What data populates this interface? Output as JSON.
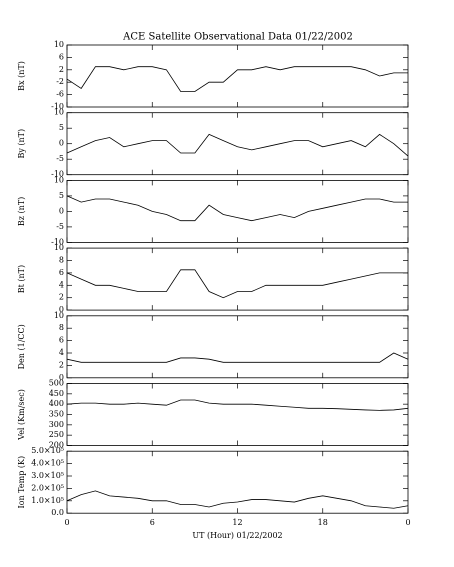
{
  "chart_data": [
    {
      "type": "line",
      "title": "ACE Satellite Observational Data   01/22/2002",
      "ylabel": "Bx (nT)",
      "color": "#000000",
      "x": [
        0,
        1,
        2,
        3,
        4,
        5,
        6,
        7,
        8,
        9,
        10,
        11,
        12,
        13,
        14,
        15,
        16,
        17,
        18,
        19,
        20,
        21,
        22,
        23,
        24
      ],
      "values": [
        -1,
        -4,
        3,
        3,
        2,
        3,
        3,
        2,
        -5,
        -5,
        -2,
        -2,
        2,
        2,
        3,
        2,
        3,
        3,
        3,
        3,
        3,
        2,
        0,
        1,
        1
      ],
      "xlim": [
        0,
        24
      ],
      "ylim": [
        -10,
        10
      ],
      "yticks": [
        -10,
        -6,
        -2,
        2,
        6,
        10
      ]
    },
    {
      "type": "line",
      "ylabel": "By (nT)",
      "color": "#000000",
      "x": [
        0,
        1,
        2,
        3,
        4,
        5,
        6,
        7,
        8,
        9,
        10,
        11,
        12,
        13,
        14,
        15,
        16,
        17,
        18,
        19,
        20,
        21,
        22,
        23,
        24
      ],
      "values": [
        -3,
        -1,
        1,
        2,
        -1,
        0,
        1,
        1,
        -3,
        -3,
        3,
        1,
        -1,
        -2,
        -1,
        0,
        1,
        1,
        -1,
        0,
        1,
        -1,
        3,
        0,
        -4
      ],
      "xlim": [
        0,
        24
      ],
      "ylim": [
        -10,
        10
      ],
      "yticks": [
        -10,
        -5,
        0,
        5,
        10
      ]
    },
    {
      "type": "line",
      "ylabel": "Bz (nT)",
      "color": "#000000",
      "x": [
        0,
        1,
        2,
        3,
        4,
        5,
        6,
        7,
        8,
        9,
        10,
        11,
        12,
        13,
        14,
        15,
        16,
        17,
        18,
        19,
        20,
        21,
        22,
        23,
        24
      ],
      "values": [
        5,
        3,
        4,
        4,
        3,
        2,
        0,
        -1,
        -3,
        -3,
        2,
        -1,
        -2,
        -3,
        -2,
        -1,
        -2,
        0,
        1,
        2,
        3,
        4,
        4,
        3,
        3
      ],
      "xlim": [
        0,
        24
      ],
      "ylim": [
        -10,
        10
      ],
      "yticks": [
        -10,
        -5,
        0,
        5,
        10
      ]
    },
    {
      "type": "line",
      "ylabel": "Bt (nT)",
      "color": "#000000",
      "x": [
        0,
        1,
        2,
        3,
        4,
        5,
        6,
        7,
        8,
        9,
        10,
        11,
        12,
        13,
        14,
        15,
        16,
        17,
        18,
        19,
        20,
        21,
        22,
        23,
        24
      ],
      "values": [
        6,
        5,
        4,
        4,
        3.5,
        3,
        3,
        3,
        6.5,
        6.5,
        3,
        2,
        3,
        3,
        4,
        4,
        4,
        4,
        4,
        4.5,
        5,
        5.5,
        6,
        6,
        6
      ],
      "xlim": [
        0,
        24
      ],
      "ylim": [
        0,
        10
      ],
      "yticks": [
        0,
        2,
        4,
        6,
        8,
        10
      ]
    },
    {
      "type": "line",
      "ylabel": "Den (1/CC)",
      "color": "#000000",
      "x": [
        0,
        1,
        2,
        3,
        4,
        5,
        6,
        7,
        8,
        9,
        10,
        11,
        12,
        13,
        14,
        15,
        16,
        17,
        18,
        19,
        20,
        21,
        22,
        23,
        24
      ],
      "values": [
        3,
        2.5,
        2.5,
        2.5,
        2.5,
        2.5,
        2.5,
        2.5,
        3.2,
        3.2,
        3,
        2.5,
        2.5,
        2.5,
        2.5,
        2.5,
        2.5,
        2.5,
        2.5,
        2.5,
        2.5,
        2.5,
        2.5,
        4,
        3
      ],
      "xlim": [
        0,
        24
      ],
      "ylim": [
        0,
        10
      ],
      "yticks": [
        0,
        2,
        4,
        6,
        8,
        10
      ]
    },
    {
      "type": "line",
      "ylabel": "Vel (Km/sec)",
      "color": "#000000",
      "x": [
        0,
        1,
        2,
        3,
        4,
        5,
        6,
        7,
        8,
        9,
        10,
        11,
        12,
        13,
        14,
        15,
        16,
        17,
        18,
        19,
        20,
        21,
        22,
        23,
        24
      ],
      "values": [
        400,
        405,
        405,
        400,
        400,
        405,
        400,
        395,
        420,
        420,
        405,
        400,
        400,
        400,
        395,
        390,
        385,
        380,
        380,
        378,
        375,
        372,
        370,
        372,
        380
      ],
      "xlim": [
        0,
        24
      ],
      "ylim": [
        200,
        500
      ],
      "yticks": [
        200,
        250,
        300,
        350,
        400,
        450,
        500
      ]
    },
    {
      "type": "line",
      "ylabel": "Ion Temp (K)",
      "xlabel": "UT (Hour)  01/22/2002",
      "color": "#000000",
      "x": [
        0,
        1,
        2,
        3,
        4,
        5,
        6,
        7,
        8,
        9,
        10,
        11,
        12,
        13,
        14,
        15,
        16,
        17,
        18,
        19,
        20,
        21,
        22,
        23,
        24
      ],
      "values": [
        100000,
        150000,
        180000,
        140000,
        130000,
        120000,
        100000,
        100000,
        70000,
        70000,
        50000,
        80000,
        90000,
        110000,
        110000,
        100000,
        90000,
        120000,
        140000,
        120000,
        100000,
        60000,
        50000,
        40000,
        60000
      ],
      "xlim": [
        0,
        24
      ],
      "ylim": [
        0,
        500000
      ],
      "yticks": [
        {
          "value": 0,
          "label": "0.0"
        },
        {
          "value": 100000,
          "label": "1.0×10⁵"
        },
        {
          "value": 200000,
          "label": "2.0×10⁵"
        },
        {
          "value": 300000,
          "label": "3.0×10⁵"
        },
        {
          "value": 400000,
          "label": "4.0×10⁵"
        },
        {
          "value": 500000,
          "label": "5.0×10⁵"
        }
      ],
      "xticks": [
        0,
        6,
        12,
        18,
        {
          "value": 24,
          "label": "0"
        }
      ]
    }
  ]
}
